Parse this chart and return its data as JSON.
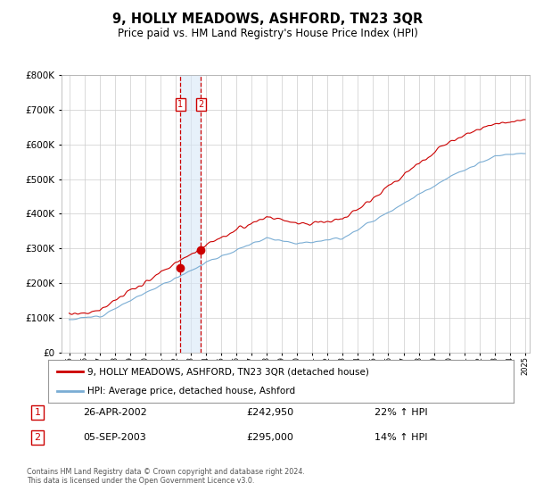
{
  "title": "9, HOLLY MEADOWS, ASHFORD, TN23 3QR",
  "subtitle": "Price paid vs. HM Land Registry's House Price Index (HPI)",
  "legend_line1": "9, HOLLY MEADOWS, ASHFORD, TN23 3QR (detached house)",
  "legend_line2": "HPI: Average price, detached house, Ashford",
  "transaction1_date": "26-APR-2002",
  "transaction1_price": "£242,950",
  "transaction1_hpi": "22% ↑ HPI",
  "transaction2_date": "05-SEP-2003",
  "transaction2_price": "£295,000",
  "transaction2_hpi": "14% ↑ HPI",
  "footer": "Contains HM Land Registry data © Crown copyright and database right 2024.\nThis data is licensed under the Open Government Licence v3.0.",
  "ylim": [
    0,
    800000
  ],
  "yticks": [
    0,
    100000,
    200000,
    300000,
    400000,
    500000,
    600000,
    700000,
    800000
  ],
  "year_start": 1995,
  "year_end": 2025,
  "red_line_color": "#cc0000",
  "blue_line_color": "#7aadd4",
  "vline_color": "#cc0000",
  "marker1_year": 2002.32,
  "marker2_year": 2003.68,
  "marker1_price": 242950,
  "marker2_price": 295000,
  "bg_color": "#ffffff",
  "grid_color": "#cccccc",
  "shade_color": "#d8e8f8"
}
